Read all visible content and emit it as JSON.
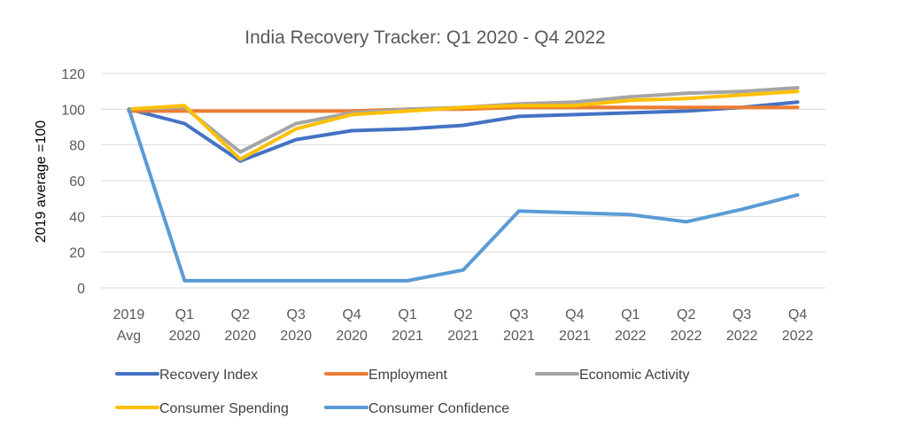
{
  "chart_data": {
    "type": "line",
    "title": "India Recovery Tracker: Q1 2020 - Q4 2022",
    "xlabel": "",
    "ylabel": "2019 average =100",
    "ylim": [
      0,
      120
    ],
    "yticks": [
      0,
      20,
      40,
      60,
      80,
      100,
      120
    ],
    "grid": true,
    "legend_position": "bottom",
    "categories": [
      [
        "2019",
        "Avg"
      ],
      [
        "Q1",
        "2020"
      ],
      [
        "Q2",
        "2020"
      ],
      [
        "Q3",
        "2020"
      ],
      [
        "Q4",
        "2020"
      ],
      [
        "Q1",
        "2021"
      ],
      [
        "Q2",
        "2021"
      ],
      [
        "Q3",
        "2021"
      ],
      [
        "Q4",
        "2021"
      ],
      [
        "Q1",
        "2022"
      ],
      [
        "Q2",
        "2022"
      ],
      [
        "Q3",
        "2022"
      ],
      [
        "Q4",
        "2022"
      ]
    ],
    "series": [
      {
        "name": "Recovery Index",
        "color": "#4472C4",
        "values": [
          100,
          92,
          71,
          83,
          88,
          89,
          91,
          96,
          97,
          98,
          99,
          101,
          104
        ]
      },
      {
        "name": "Employment",
        "color": "#ED7D31",
        "values": [
          99,
          99,
          99,
          99,
          99,
          100,
          100,
          101,
          101,
          101,
          101,
          101,
          101
        ]
      },
      {
        "name": "Economic Activity",
        "color": "#A5A5A5",
        "values": [
          100,
          101,
          76,
          92,
          98,
          100,
          101,
          103,
          104,
          107,
          109,
          110,
          112
        ]
      },
      {
        "name": "Consumer Spending",
        "color": "#FFC000",
        "values": [
          100,
          102,
          72,
          89,
          97,
          99,
          101,
          102,
          102,
          105,
          106,
          108,
          110
        ]
      },
      {
        "name": "Consumer Confidence",
        "color": "#5B9BD5",
        "values": [
          100,
          4,
          4,
          4,
          4,
          4,
          10,
          43,
          42,
          41,
          37,
          44,
          52
        ]
      }
    ]
  }
}
